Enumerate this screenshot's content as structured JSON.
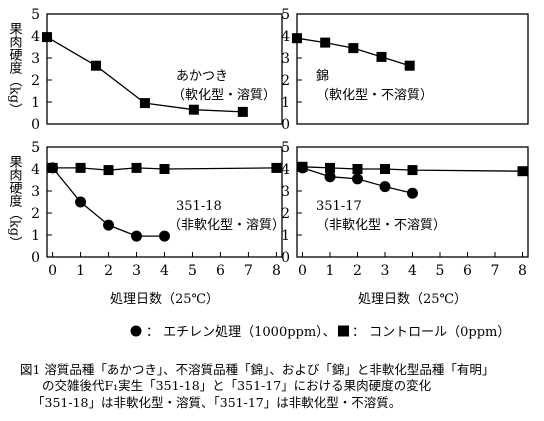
{
  "chart_data": [
    {
      "type": "line",
      "panel": "top-left",
      "annotation": [
        "あかつき",
        "（軟化型・溶質）"
      ],
      "ylabel": "果肉硬度（kg）",
      "ylim": [
        0,
        5
      ],
      "yticks": [
        0,
        1,
        2,
        3,
        4,
        5
      ],
      "xlim": [
        0,
        4.8
      ],
      "series": [
        {
          "marker": "square",
          "x": [
            0,
            1,
            2,
            3,
            4
          ],
          "y": [
            3.95,
            2.65,
            0.95,
            0.65,
            0.55
          ]
        }
      ]
    },
    {
      "type": "line",
      "panel": "top-right",
      "annotation": [
        "錦",
        "（軟化型・不溶質）"
      ],
      "ylim": [
        0,
        5
      ],
      "yticks": [
        0,
        1,
        2,
        3,
        4,
        5
      ],
      "xlim": [
        0,
        8.2
      ],
      "series": [
        {
          "marker": "square",
          "x": [
            0,
            1,
            2,
            3,
            4
          ],
          "y": [
            3.9,
            3.7,
            3.45,
            3.05,
            2.65
          ]
        }
      ]
    },
    {
      "type": "line",
      "panel": "bottom-left",
      "annotation": [
        "351-18",
        "（非軟化型・溶質）"
      ],
      "ylabel": "果肉硬度（kg）",
      "xlabel": "処理日数（25℃）",
      "ylim": [
        0,
        5
      ],
      "yticks": [
        0,
        1,
        2,
        3,
        4,
        5
      ],
      "xlim": [
        -0.2,
        8.2
      ],
      "xticks": [
        0,
        1,
        2,
        3,
        4,
        5,
        6,
        7,
        8
      ],
      "series": [
        {
          "marker": "square",
          "x": [
            0,
            1,
            2,
            3,
            4,
            8
          ],
          "y": [
            4.05,
            4.05,
            3.95,
            4.05,
            4.0,
            4.05
          ]
        },
        {
          "marker": "circle",
          "x": [
            0,
            1,
            2,
            3,
            4
          ],
          "y": [
            4.05,
            2.5,
            1.45,
            0.95,
            0.95
          ]
        }
      ]
    },
    {
      "type": "line",
      "panel": "bottom-right",
      "annotation": [
        "351-17",
        "（非軟化型・不溶質）"
      ],
      "xlabel": "処理日数（25℃）",
      "ylim": [
        0,
        5
      ],
      "yticks": [
        0,
        1,
        2,
        3,
        4,
        5
      ],
      "xlim": [
        -0.2,
        8.2
      ],
      "xticks": [
        0,
        1,
        2,
        3,
        4,
        5,
        6,
        7,
        8
      ],
      "series": [
        {
          "marker": "square",
          "x": [
            0,
            1,
            2,
            3,
            4,
            8
          ],
          "y": [
            4.1,
            4.05,
            4.0,
            4.0,
            3.95,
            3.9
          ]
        },
        {
          "marker": "circle",
          "x": [
            0,
            1,
            2,
            3,
            4
          ],
          "y": [
            4.05,
            3.65,
            3.55,
            3.2,
            2.9
          ]
        }
      ]
    }
  ],
  "legend": {
    "circle_text": "：  エチレン処理（1000ppm）、",
    "square_text": "：  コントロール（0ppm）"
  },
  "caption": [
    "図1  溶質品種「あかつき」、不溶質品種「錦」、および「錦」と非軟化型品種「有明」",
    "の交雑後代F₁実生「351-18」と「351-17」における果肉硬度の変化",
    "「351-18」は非軟化型・溶質、「351-17」は非軟化型・不溶質。"
  ]
}
